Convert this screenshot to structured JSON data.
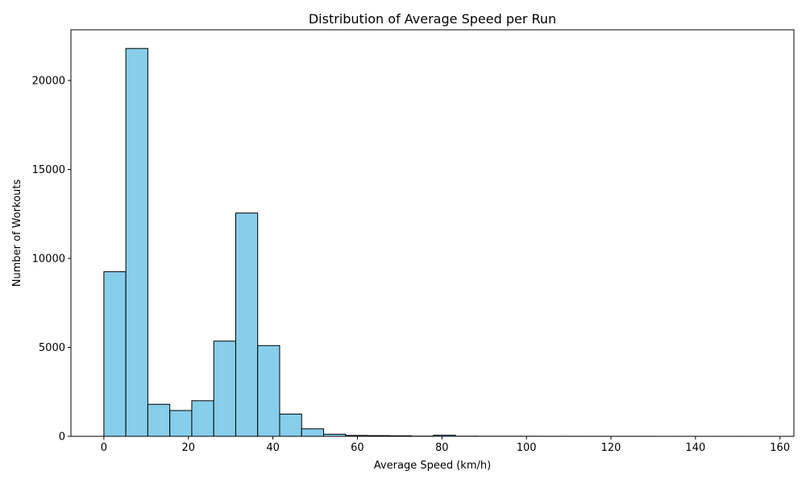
{
  "chart_data": {
    "type": "bar",
    "title": "Distribution of Average Speed per Run",
    "xlabel": "Average Speed (km/h)",
    "ylabel": "Number of Workouts",
    "grid": false,
    "xlim": [
      -7.8,
      163.3
    ],
    "ylim": [
      0,
      22850
    ],
    "xticks": [
      0,
      20,
      40,
      60,
      80,
      100,
      120,
      140,
      160
    ],
    "yticks": [
      0,
      5000,
      10000,
      15000,
      20000
    ],
    "bar_color": "#87CEEB",
    "edge_color": "#000000",
    "bins": [
      {
        "x0": 0.0,
        "x1": 5.2,
        "count": 9250
      },
      {
        "x0": 5.2,
        "x1": 10.4,
        "count": 21800
      },
      {
        "x0": 10.4,
        "x1": 15.6,
        "count": 1800
      },
      {
        "x0": 15.6,
        "x1": 20.8,
        "count": 1450
      },
      {
        "x0": 20.8,
        "x1": 26.0,
        "count": 2000
      },
      {
        "x0": 26.0,
        "x1": 31.2,
        "count": 5350
      },
      {
        "x0": 31.2,
        "x1": 36.4,
        "count": 12550
      },
      {
        "x0": 36.4,
        "x1": 41.6,
        "count": 5100
      },
      {
        "x0": 41.6,
        "x1": 46.8,
        "count": 1250
      },
      {
        "x0": 46.8,
        "x1": 52.0,
        "count": 420
      },
      {
        "x0": 52.0,
        "x1": 57.2,
        "count": 120
      },
      {
        "x0": 57.2,
        "x1": 62.4,
        "count": 50
      },
      {
        "x0": 62.4,
        "x1": 67.6,
        "count": 40
      },
      {
        "x0": 67.6,
        "x1": 72.8,
        "count": 30
      },
      {
        "x0": 72.8,
        "x1": 78.0,
        "count": 10
      },
      {
        "x0": 78.0,
        "x1": 83.2,
        "count": 60
      },
      {
        "x0": 83.2,
        "x1": 88.4,
        "count": 8
      },
      {
        "x0": 88.4,
        "x1": 93.6,
        "count": 5
      },
      {
        "x0": 93.6,
        "x1": 98.8,
        "count": 5
      },
      {
        "x0": 98.8,
        "x1": 104.0,
        "count": 4
      },
      {
        "x0": 104.0,
        "x1": 109.2,
        "count": 3
      },
      {
        "x0": 109.2,
        "x1": 114.4,
        "count": 3
      },
      {
        "x0": 114.4,
        "x1": 119.6,
        "count": 2
      },
      {
        "x0": 119.6,
        "x1": 124.8,
        "count": 2
      },
      {
        "x0": 124.8,
        "x1": 130.0,
        "count": 2
      },
      {
        "x0": 130.0,
        "x1": 135.2,
        "count": 1
      },
      {
        "x0": 135.2,
        "x1": 140.4,
        "count": 1
      },
      {
        "x0": 140.4,
        "x1": 145.6,
        "count": 1
      },
      {
        "x0": 145.6,
        "x1": 150.8,
        "count": 1
      },
      {
        "x0": 150.8,
        "x1": 156.0,
        "count": 1
      }
    ]
  }
}
